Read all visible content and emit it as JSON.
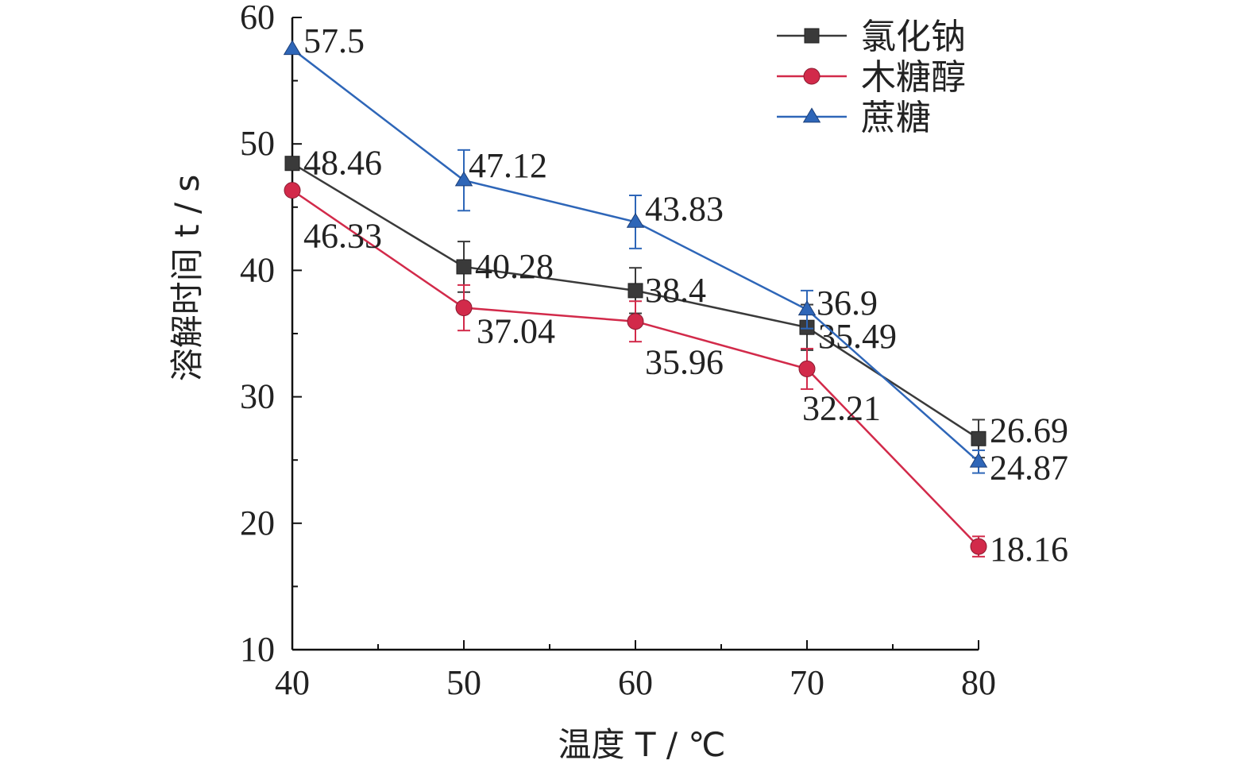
{
  "chart_data": {
    "type": "line",
    "xlabel": "温度 T / ℃",
    "ylabel": "溶解时间 t / s",
    "x": [
      40,
      50,
      60,
      70,
      80
    ],
    "xlim": [
      40,
      80
    ],
    "ylim": [
      10,
      60
    ],
    "xticks": [
      "40",
      "50",
      "60",
      "70",
      "80"
    ],
    "yticks": [
      "10",
      "20",
      "30",
      "40",
      "50",
      "60"
    ],
    "grid": false,
    "legend_position": "top-right",
    "series": [
      {
        "name": "氯化钠",
        "marker": "square",
        "color": "#3a3a3a",
        "values": [
          48.46,
          40.28,
          38.4,
          35.49,
          26.69
        ],
        "errors": [
          0,
          2.0,
          1.8,
          1.8,
          1.5
        ],
        "labels": [
          "48.46",
          "40.28",
          "38.4",
          "35.49",
          "26.69"
        ]
      },
      {
        "name": "木糖醇",
        "marker": "circle",
        "color": "#d22a4a",
        "values": [
          46.33,
          37.04,
          35.96,
          32.21,
          18.16
        ],
        "errors": [
          0,
          1.8,
          1.6,
          1.6,
          0.8
        ],
        "labels": [
          "46.33",
          "37.04",
          "35.96",
          "32.21",
          "18.16"
        ]
      },
      {
        "name": "蔗糖",
        "marker": "triangle",
        "color": "#2e66b8",
        "values": [
          57.5,
          47.12,
          43.83,
          36.9,
          24.87
        ],
        "errors": [
          0,
          2.4,
          2.1,
          1.5,
          0.9
        ],
        "labels": [
          "57.5",
          "47.12",
          "43.83",
          "36.9",
          "24.87"
        ]
      }
    ]
  }
}
